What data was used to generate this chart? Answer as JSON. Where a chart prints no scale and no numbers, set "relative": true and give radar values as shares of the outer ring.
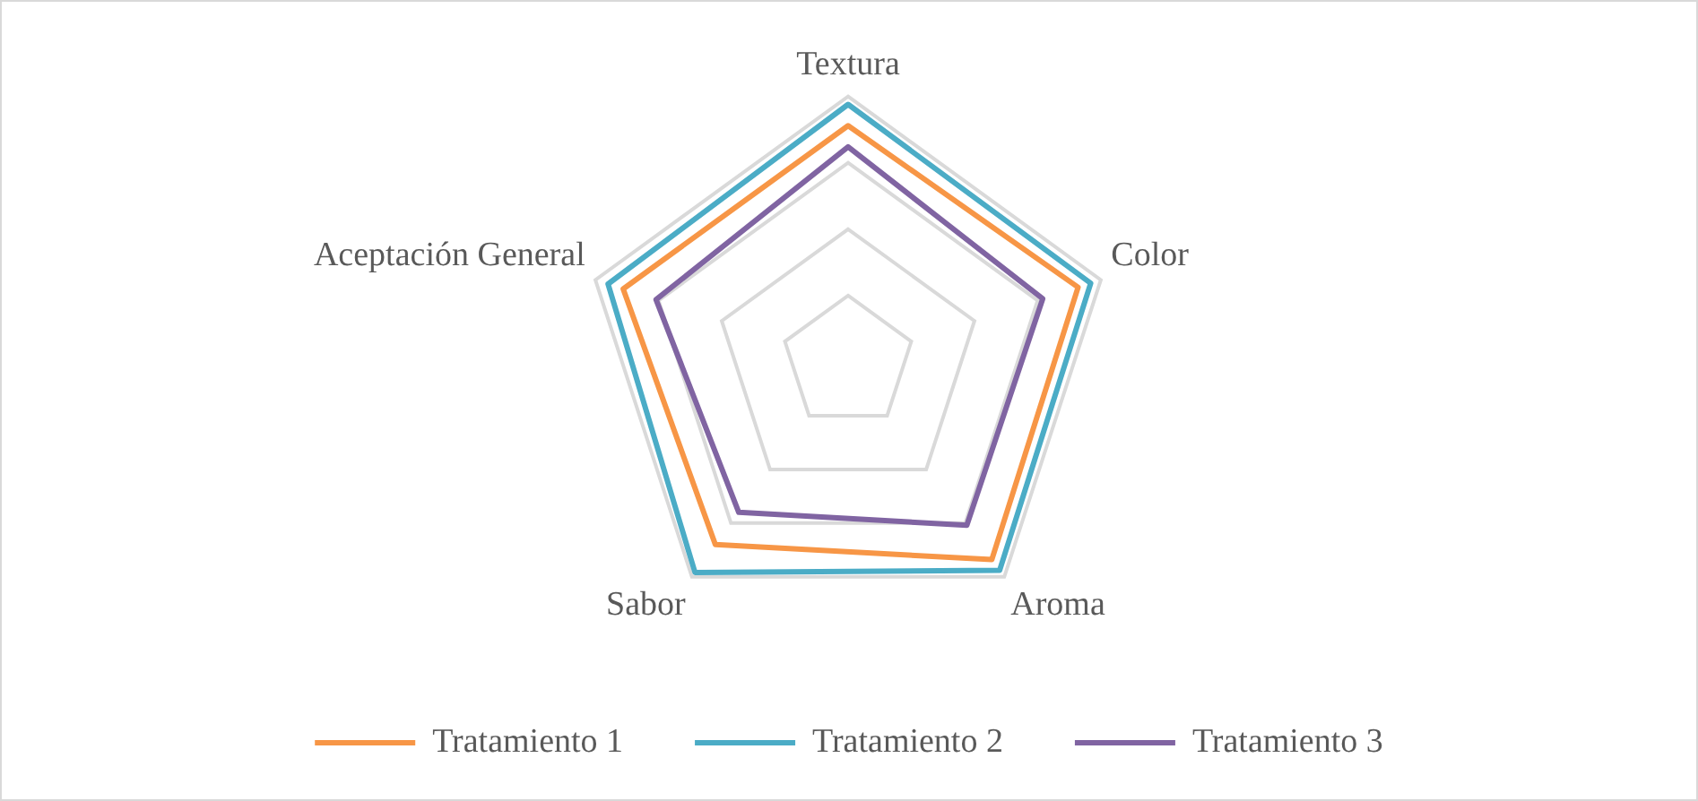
{
  "chart_data": {
    "type": "radar",
    "relative": true,
    "grid": true,
    "legend": "bottom",
    "marker": "none",
    "categories": [
      "Textura",
      "Color",
      "Aroma",
      "Sabor",
      "Aceptación General"
    ],
    "series": [
      {
        "name": "Tratamiento 1",
        "color": "#f79646",
        "values": [
          0.89,
          0.91,
          0.92,
          0.85,
          0.89
        ]
      },
      {
        "name": "Tratamiento 2",
        "color": "#4bacc6",
        "values": [
          0.97,
          0.96,
          0.97,
          0.98,
          0.95
        ]
      },
      {
        "name": "Tratamiento 3",
        "color": "#8064a2",
        "values": [
          0.81,
          0.77,
          0.76,
          0.7,
          0.76
        ]
      }
    ]
  }
}
